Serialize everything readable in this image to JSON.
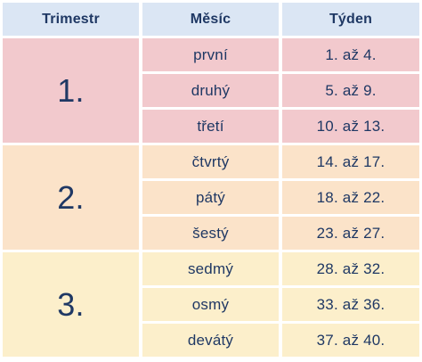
{
  "headers": {
    "trimester": "Trimestr",
    "month": "Měsíc",
    "week": "Týden"
  },
  "trimesters": [
    {
      "label": "1.",
      "color": "#f2c9cd",
      "months": [
        {
          "month": "první",
          "weeks": "1. až 4."
        },
        {
          "month": "druhý",
          "weeks": "5. až 9."
        },
        {
          "month": "třetí",
          "weeks": "10. až 13."
        }
      ]
    },
    {
      "label": "2.",
      "color": "#fbe3c9",
      "months": [
        {
          "month": "čtvrtý",
          "weeks": "14. až 17."
        },
        {
          "month": "pátý",
          "weeks": "18. až 22."
        },
        {
          "month": "šestý",
          "weeks": "23. až 27."
        }
      ]
    },
    {
      "label": "3.",
      "color": "#fcefcb",
      "months": [
        {
          "month": "sedmý",
          "weeks": "28. až 32."
        },
        {
          "month": "osmý",
          "weeks": "33. až 36."
        },
        {
          "month": "devátý",
          "weeks": "37. až 40."
        }
      ]
    }
  ]
}
